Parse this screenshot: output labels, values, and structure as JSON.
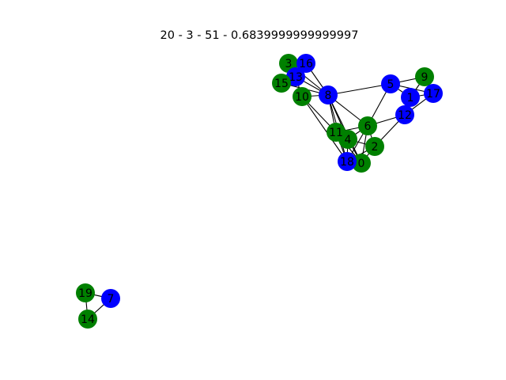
{
  "title": "20 - 3 - 51 - 0.6839999999999997",
  "colors": {
    "green": "#008000",
    "blue": "#0000ff"
  },
  "nodes": [
    {
      "id": "0",
      "color": "green"
    },
    {
      "id": "1",
      "color": "blue"
    },
    {
      "id": "2",
      "color": "green"
    },
    {
      "id": "3",
      "color": "green"
    },
    {
      "id": "4",
      "color": "green"
    },
    {
      "id": "5",
      "color": "blue"
    },
    {
      "id": "6",
      "color": "green"
    },
    {
      "id": "7",
      "color": "blue"
    },
    {
      "id": "8",
      "color": "blue"
    },
    {
      "id": "9",
      "color": "green"
    },
    {
      "id": "10",
      "color": "green"
    },
    {
      "id": "11",
      "color": "green"
    },
    {
      "id": "12",
      "color": "blue"
    },
    {
      "id": "13",
      "color": "blue"
    },
    {
      "id": "14",
      "color": "green"
    },
    {
      "id": "15",
      "color": "green"
    },
    {
      "id": "16",
      "color": "blue"
    },
    {
      "id": "17",
      "color": "blue"
    },
    {
      "id": "18",
      "color": "blue"
    },
    {
      "id": "19",
      "color": "green"
    }
  ],
  "edges": [
    [
      "3",
      "16"
    ],
    [
      "3",
      "13"
    ],
    [
      "3",
      "8"
    ],
    [
      "16",
      "13"
    ],
    [
      "16",
      "8"
    ],
    [
      "15",
      "13"
    ],
    [
      "15",
      "8"
    ],
    [
      "13",
      "10"
    ],
    [
      "13",
      "8"
    ],
    [
      "10",
      "8"
    ],
    [
      "10",
      "11"
    ],
    [
      "10",
      "18"
    ],
    [
      "8",
      "5"
    ],
    [
      "8",
      "11"
    ],
    [
      "8",
      "6"
    ],
    [
      "8",
      "4"
    ],
    [
      "8",
      "18"
    ],
    [
      "8",
      "0"
    ],
    [
      "5",
      "9"
    ],
    [
      "5",
      "1"
    ],
    [
      "5",
      "17"
    ],
    [
      "5",
      "6"
    ],
    [
      "9",
      "1"
    ],
    [
      "9",
      "17"
    ],
    [
      "1",
      "17"
    ],
    [
      "1",
      "12"
    ],
    [
      "17",
      "12"
    ],
    [
      "12",
      "6"
    ],
    [
      "12",
      "2"
    ],
    [
      "6",
      "11"
    ],
    [
      "6",
      "4"
    ],
    [
      "6",
      "2"
    ],
    [
      "6",
      "18"
    ],
    [
      "6",
      "0"
    ],
    [
      "11",
      "4"
    ],
    [
      "11",
      "18"
    ],
    [
      "11",
      "0"
    ],
    [
      "4",
      "2"
    ],
    [
      "4",
      "18"
    ],
    [
      "4",
      "0"
    ],
    [
      "2",
      "18"
    ],
    [
      "2",
      "0"
    ],
    [
      "18",
      "0"
    ],
    [
      "19",
      "7"
    ],
    [
      "19",
      "14"
    ],
    [
      "14",
      "7"
    ]
  ]
}
